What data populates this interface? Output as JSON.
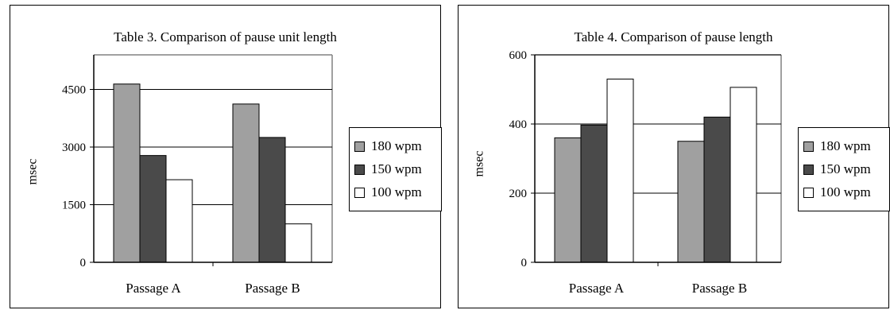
{
  "chart_data": [
    {
      "type": "bar",
      "title": "Table 3. Comparison of pause unit length",
      "xlabel": "",
      "ylabel": "msec",
      "categories": [
        "Passage A",
        "Passage B"
      ],
      "yticks": [
        "0",
        "1500",
        "3000",
        "4500"
      ],
      "ylim": [
        0,
        5400
      ],
      "grid": true,
      "legend_position": "right",
      "series": [
        {
          "name": "180 wpm",
          "color": "#a0a0a0",
          "values": [
            4640,
            4120
          ]
        },
        {
          "name": "150 wpm",
          "color": "#4a4a4a",
          "values": [
            2780,
            3250
          ]
        },
        {
          "name": "100 wpm",
          "color": "#ffffff",
          "values": [
            2150,
            1000
          ]
        }
      ]
    },
    {
      "type": "bar",
      "title": "Table 4. Comparison of pause length",
      "xlabel": "",
      "ylabel": "msec",
      "categories": [
        "Passage A",
        "Passage B"
      ],
      "yticks": [
        "0",
        "200",
        "400",
        "600"
      ],
      "ylim": [
        0,
        600
      ],
      "grid": true,
      "legend_position": "right",
      "series": [
        {
          "name": "180 wpm",
          "color": "#a0a0a0",
          "values": [
            360,
            350
          ]
        },
        {
          "name": "150 wpm",
          "color": "#4a4a4a",
          "values": [
            397,
            420
          ]
        },
        {
          "name": "100 wpm",
          "color": "#ffffff",
          "values": [
            530,
            506
          ]
        }
      ]
    }
  ]
}
